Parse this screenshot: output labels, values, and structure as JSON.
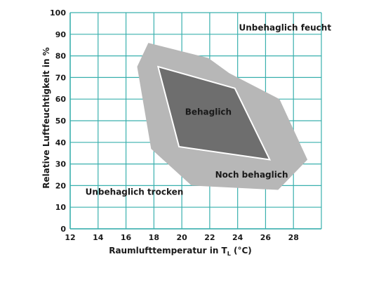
{
  "chart_data": {
    "type": "area",
    "title": "",
    "xlabel": "Raumlufttemperatur in T",
    "xlabel_sub": "L",
    "xlabel_unit": " (°C)",
    "ylabel": "Relative Luftfeuchtigkeit in %",
    "xlim": [
      12,
      30
    ],
    "ylim": [
      0,
      100
    ],
    "x_ticks": [
      12,
      14,
      16,
      18,
      20,
      22,
      24,
      26,
      28
    ],
    "y_ticks": [
      0,
      10,
      20,
      30,
      40,
      50,
      60,
      70,
      80,
      90,
      100
    ],
    "grid": true,
    "grid_color": "#3ab0ae",
    "zones": [
      {
        "label": "Noch behaglich",
        "color": "#b7b7b7",
        "polygon": [
          [
            17.6,
            86
          ],
          [
            21.9,
            79
          ],
          [
            23.4,
            72
          ],
          [
            27.0,
            60
          ],
          [
            29.0,
            32
          ],
          [
            26.9,
            18
          ],
          [
            20.7,
            20
          ],
          [
            17.8,
            37
          ],
          [
            16.8,
            75
          ]
        ]
      },
      {
        "label": "Behaglich",
        "color": "#6e6e6e",
        "outline": "#ffffff",
        "polygon": [
          [
            18.3,
            75
          ],
          [
            23.8,
            65
          ],
          [
            26.3,
            32
          ],
          [
            19.8,
            38
          ]
        ]
      }
    ],
    "zone_labels": [
      {
        "text": "Unbehaglich feucht",
        "x": 27.4,
        "y": 93
      },
      {
        "text": "Behaglich",
        "x": 21.9,
        "y": 54
      },
      {
        "text": "Noch behaglich",
        "x": 25.0,
        "y": 25
      },
      {
        "text": "Unbehaglich trocken",
        "x": 16.6,
        "y": 17
      }
    ]
  }
}
